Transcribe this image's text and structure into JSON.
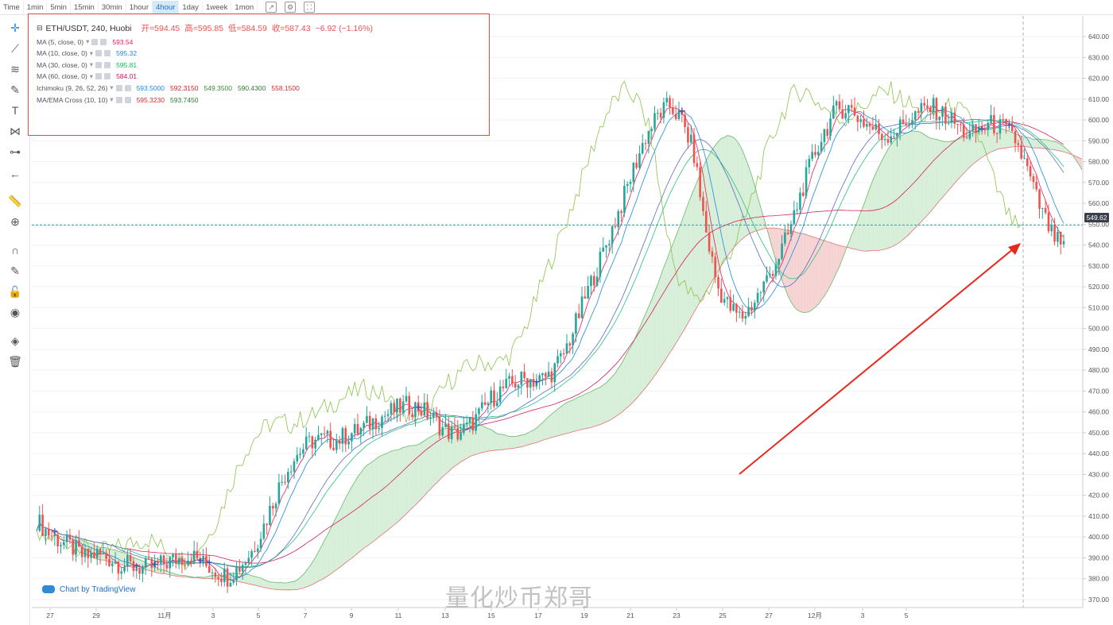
{
  "toolbar": {
    "timeframes": [
      "Time",
      "1min",
      "5min",
      "15min",
      "30min",
      "1hour",
      "4hour",
      "1day",
      "1week",
      "1mon"
    ],
    "active_timeframe": "4hour"
  },
  "left_tools": [
    "crosshair-icon",
    "trendline-icon",
    "fib-icon",
    "brush-icon",
    "text-icon",
    "pattern-icon",
    "measure-icon",
    "back-arrow-icon",
    "ruler-icon",
    "zoom-in-icon",
    "magnet-icon",
    "lock-drawings-icon",
    "unlock-icon",
    "eye-icon",
    "layers-icon",
    "trash-icon"
  ],
  "legend": {
    "symbol": "ETH/USDT, 240, Huobi",
    "open_label": "开=",
    "open": "594.45",
    "high_label": "高=",
    "high": "595.85",
    "low_label": "低=",
    "low": "584.59",
    "close_label": "收=",
    "close": "587.43",
    "change": "−6.92 (−1.16%)",
    "indicators": [
      {
        "name": "MA (5, close, 0)",
        "values": [
          "593.54"
        ],
        "colors": [
          "#e91e63"
        ]
      },
      {
        "name": "MA (10, close, 0)",
        "values": [
          "595.32"
        ],
        "colors": [
          "#1e88e5"
        ]
      },
      {
        "name": "MA (30, close, 0)",
        "values": [
          "595.81"
        ],
        "colors": [
          "#00c853"
        ]
      },
      {
        "name": "MA (60, close, 0)",
        "values": [
          "584.01"
        ],
        "colors": [
          "#c2185b"
        ]
      },
      {
        "name": "Ichimoku (9, 26, 52, 26)",
        "values": [
          "593.5000",
          "592.3150",
          "549.3500",
          "590.4300",
          "558.1500"
        ],
        "colors": [
          "#1e88e5",
          "#c62828",
          "#388e3c",
          "#2e7d32",
          "#d32f2f"
        ]
      },
      {
        "name": "MA/EMA Cross (10, 10)",
        "values": [
          "595.3230",
          "593.7450"
        ],
        "colors": [
          "#d32f2f",
          "#2e7d32"
        ]
      }
    ]
  },
  "price_tag": "549.62",
  "brand": "Chart by TradingView",
  "watermark": "量化炒币郑哥",
  "colors": {
    "up": "#26a69a",
    "down": "#ef5350",
    "cloud_bull": "#d7eed8",
    "cloud_bear": "#f6d3d3",
    "arrow": "#e8281c"
  },
  "chart_data": {
    "type": "candlestick",
    "title": "ETH/USDT, 240, Huobi",
    "ylim": [
      365,
      645
    ],
    "y_ticks": [
      370,
      380,
      390,
      400,
      410,
      420,
      430,
      440,
      450,
      460,
      470,
      480,
      490,
      500,
      510,
      520,
      530,
      540,
      550,
      560,
      570,
      580,
      590,
      600,
      610,
      620,
      630,
      640
    ],
    "x_ticks": [
      "27",
      "29",
      "11月",
      "3",
      "5",
      "7",
      "9",
      "11",
      "13",
      "15",
      "17",
      "19",
      "21",
      "23",
      "25",
      "27",
      "12月",
      "3",
      "5"
    ],
    "current_price": 549.62,
    "close_trend": [
      408,
      402,
      398,
      395,
      390,
      392,
      390,
      387,
      386,
      385,
      386,
      388,
      390,
      391,
      387,
      384,
      381,
      386,
      393,
      405,
      420,
      433,
      441,
      446,
      447,
      446,
      449,
      451,
      455,
      458,
      461,
      463,
      462,
      458,
      452,
      449,
      452,
      458,
      466,
      471,
      474,
      476,
      475,
      478,
      486,
      500,
      516,
      530,
      545,
      560,
      577,
      592,
      602,
      607,
      600,
      585,
      548,
      520,
      510,
      505,
      512,
      522,
      533,
      546,
      565,
      582,
      595,
      605,
      606,
      600,
      596,
      592,
      595,
      600,
      604,
      606,
      602,
      598,
      592,
      596,
      598,
      596,
      590,
      575,
      558,
      545,
      538
    ]
  }
}
